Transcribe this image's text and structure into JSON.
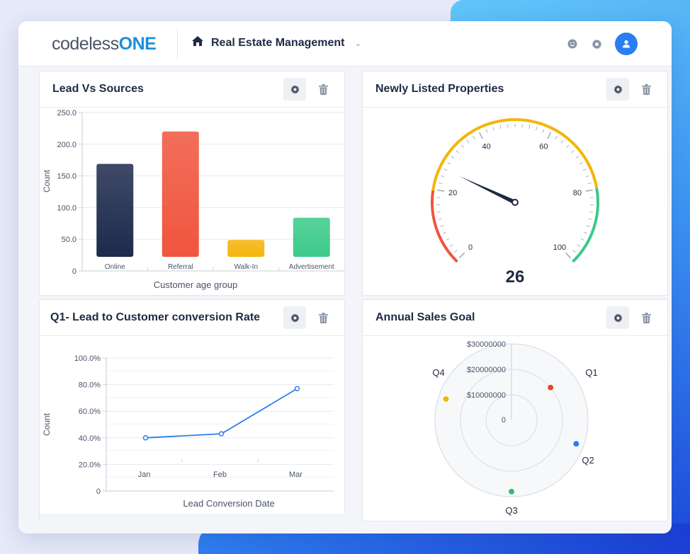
{
  "app": {
    "logo_part1": "codeless",
    "logo_part2": "ONE",
    "current_app": "Real Estate Management"
  },
  "cards": {
    "lead_sources": {
      "title": "Lead Vs Sources"
    },
    "new_listings": {
      "title": "Newly Listed Properties"
    },
    "conversion": {
      "title": "Q1- Lead to Customer conversion Rate"
    },
    "sales_goal": {
      "title": "Annual Sales Goal"
    }
  },
  "colors": {
    "accent": "#2a7ef0",
    "gauge_red": "#f0553e",
    "gauge_yellow": "#f5b40a",
    "gauge_green": "#3cc98a"
  },
  "chart_data": [
    {
      "type": "bar",
      "categories": [
        "Online",
        "Referral",
        "Walk-In",
        "Advertisement"
      ],
      "values": [
        169,
        220,
        49,
        84
      ],
      "colors": [
        "#1d2a4c",
        "#f0553e",
        "#f5b40a",
        "#3cc98a"
      ],
      "xlabel": "Customer age group",
      "ylabel": "Count",
      "yticks": [
        "0",
        "50.0",
        "100.0",
        "150.0",
        "200.0",
        "250.0"
      ],
      "ylim": [
        0,
        250
      ]
    },
    {
      "type": "gauge",
      "value": 26,
      "min": 0,
      "max": 100,
      "ticks": [
        "0",
        "20",
        "40",
        "60",
        "80",
        "100"
      ]
    },
    {
      "type": "line",
      "categories": [
        "Jan",
        "Feb",
        "Mar"
      ],
      "values": [
        40,
        43,
        77
      ],
      "xlabel": "Lead Conversion Date",
      "ylabel": "Count",
      "yticks": [
        "0",
        "20.0%",
        "40.0%",
        "60.0%",
        "80.0%",
        "100.0%"
      ],
      "ylim": [
        0,
        100
      ]
    },
    {
      "type": "scatter",
      "categories": [
        "Q1",
        "Q2",
        "Q3",
        "Q4"
      ],
      "values": [
        20000000,
        27000000,
        28000000,
        27000000
      ],
      "colors": [
        "#e8452c",
        "#2a7ef0",
        "#2fbf71",
        "#f5b40a"
      ],
      "rticks": [
        "0",
        "$10000000",
        "$20000000",
        "$30000000"
      ],
      "rlim": [
        0,
        30000000
      ]
    }
  ]
}
